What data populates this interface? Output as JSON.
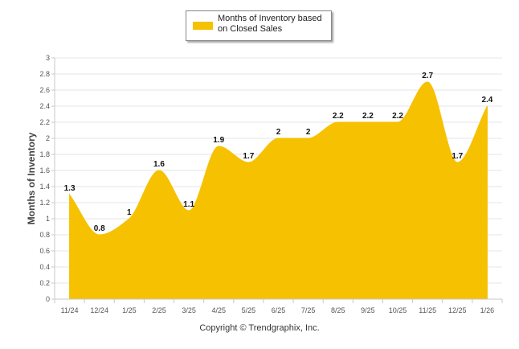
{
  "chart_data": {
    "type": "area",
    "categories": [
      "11/24",
      "12/24",
      "1/25",
      "2/25",
      "3/25",
      "4/25",
      "5/25",
      "6/25",
      "7/25",
      "8/25",
      "9/25",
      "10/25",
      "11/25",
      "12/25",
      "1/26"
    ],
    "series": [
      {
        "name": "Months of Inventory based on Closed Sales",
        "values": [
          1.3,
          0.8,
          1,
          1.6,
          1.1,
          1.9,
          1.7,
          2,
          2,
          2.2,
          2.2,
          2.2,
          2.7,
          1.7,
          2.4
        ],
        "labels": [
          "1.3",
          "0.8",
          "1",
          "1.6",
          "1.1",
          "1.9",
          "1.7",
          "2",
          "2",
          "2.2",
          "2.2",
          "2.2",
          "2.7",
          "1.7",
          "2.4"
        ]
      }
    ],
    "ylim": [
      0,
      3
    ],
    "yticks": [
      "0",
      "0.2",
      "0.4",
      "0.6",
      "0.8",
      "1",
      "1.2",
      "1.4",
      "1.6",
      "1.8",
      "2",
      "2.2",
      "2.4",
      "2.6",
      "2.8",
      "3"
    ],
    "ylabel": "Months of Inventory",
    "xlabel": "",
    "grid": true,
    "legend_position": "top-center",
    "color": "#F6C100"
  },
  "legend": {
    "label": "Months of Inventory based on Closed Sales"
  },
  "footer": {
    "copyright": "Copyright © Trendgraphix, Inc."
  }
}
